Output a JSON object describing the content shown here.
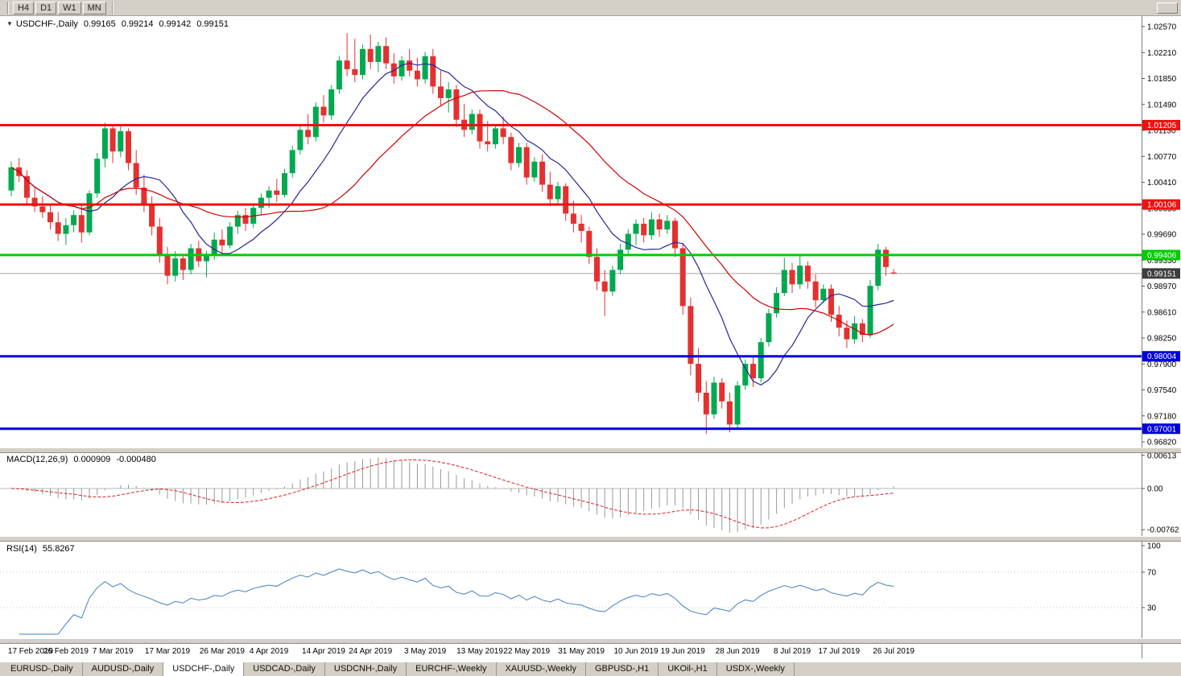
{
  "toolbar": {
    "timeframe_buttons": [
      "H4",
      "D1",
      "W1",
      "MN"
    ]
  },
  "main_chart": {
    "collapse_arrow": "▼",
    "symbol": "USDCHF-,Daily",
    "open": "0.99165",
    "high": "0.99214",
    "low": "0.99142",
    "close": "0.99151"
  },
  "macd_panel": {
    "label": "MACD(12,26,9)",
    "main_value": "0.000909",
    "signal_value": "-0.000480"
  },
  "rsi_panel": {
    "label": "RSI(14)",
    "value": "55.8267"
  },
  "tabs": {
    "items": [
      {
        "label": "EURUSD-,Daily",
        "active": false
      },
      {
        "label": "AUDUSD-,Daily",
        "active": false
      },
      {
        "label": "USDCHF-,Daily",
        "active": true
      },
      {
        "label": "USDCAD-,Daily",
        "active": false
      },
      {
        "label": "USDCNH-,Daily",
        "active": false
      },
      {
        "label": "EURCHF-,Weekly",
        "active": false
      },
      {
        "label": "XAUUSD-,Weekly",
        "active": false
      },
      {
        "label": "GBPUSD-,H1",
        "active": false
      },
      {
        "label": "UKOil-,H1",
        "active": false
      },
      {
        "label": "USDX-,Weekly",
        "active": false
      }
    ]
  },
  "chart_data": {
    "type": "candlestick",
    "symbol": "USDCHF",
    "timeframe": "Daily",
    "colors": {
      "up": "#00a94f",
      "down": "#e53030"
    },
    "y_axis": {
      "ticks": [
        "1.02570",
        "1.02210",
        "1.01850",
        "1.01490",
        "1.01130",
        "1.00770",
        "1.00410",
        "1.00050",
        "0.99690",
        "0.99330",
        "0.98970",
        "0.98610",
        "0.98250",
        "0.97900",
        "0.97540",
        "0.97180",
        "0.96820"
      ],
      "top_value": 1.0257,
      "bottom_value": 0.9682
    },
    "x_tick_labels": [
      {
        "i": 0,
        "label": "17 Feb 2019"
      },
      {
        "i": 7,
        "label": "26 Feb 2019"
      },
      {
        "i": 13,
        "label": "7 Mar 2019"
      },
      {
        "i": 20,
        "label": "17 Mar 2019"
      },
      {
        "i": 27,
        "label": "26 Mar 2019"
      },
      {
        "i": 33,
        "label": "4 Apr 2019"
      },
      {
        "i": 40,
        "label": "14 Apr 2019"
      },
      {
        "i": 46,
        "label": "24 Apr 2019"
      },
      {
        "i": 53,
        "label": "3 May 2019"
      },
      {
        "i": 60,
        "label": "13 May 2019"
      },
      {
        "i": 66,
        "label": "22 May 2019"
      },
      {
        "i": 73,
        "label": "31 May 2019"
      },
      {
        "i": 80,
        "label": "10 Jun 2019"
      },
      {
        "i": 86,
        "label": "19 Jun 2019"
      },
      {
        "i": 93,
        "label": "28 Jun 2019"
      },
      {
        "i": 100,
        "label": "8 Jul 2019"
      },
      {
        "i": 106,
        "label": "17 Jul 2019"
      },
      {
        "i": 113,
        "label": "26 Jul 2019"
      }
    ],
    "h_lines": [
      {
        "name": "resistance-1",
        "value": 1.01205,
        "label": "1.01205",
        "color": "#ee1111"
      },
      {
        "name": "resistance-2",
        "value": 1.00106,
        "label": "1.00106",
        "color": "#ee1111"
      },
      {
        "name": "support-green",
        "value": 0.99406,
        "label": "0.99406",
        "color": "#00cc00"
      },
      {
        "name": "support-blue-1",
        "value": 0.98004,
        "label": "0.98004",
        "color": "#0000dd"
      },
      {
        "name": "support-blue-2",
        "value": 0.97001,
        "label": "0.97001",
        "color": "#0000dd"
      }
    ],
    "current_price_line": {
      "value": 0.99151,
      "label": "0.99151",
      "color": "#3d3d3d"
    },
    "moving_averages": [
      {
        "type": "sma",
        "period": 10,
        "color": "#26269a"
      },
      {
        "type": "sma",
        "period": 25,
        "color": "#cc0000"
      }
    ],
    "macd": {
      "fast": 12,
      "slow": 26,
      "signal_period": 9,
      "histogram_color": "#999999",
      "signal_color": "#dd2222",
      "axis_labels": [
        "0.00613",
        "0.00",
        "-0.00762"
      ]
    },
    "rsi": {
      "period": 14,
      "color": "#4180c0",
      "levels": [
        70,
        30
      ],
      "axis_labels": [
        "100",
        "70",
        "30"
      ]
    },
    "candles": [
      [
        1.003,
        1.007,
        1.0022,
        1.0062
      ],
      [
        1.0062,
        1.0075,
        1.0042,
        1.005
      ],
      [
        1.005,
        1.0058,
        1.0012,
        1.002
      ],
      [
        1.002,
        1.0035,
        1.0,
        1.0008
      ],
      [
        1.0008,
        1.0022,
        0.9992,
        1.0
      ],
      [
        1.0,
        1.0012,
        0.9976,
        0.9986
      ],
      [
        0.9986,
        1.0,
        0.996,
        0.997
      ],
      [
        0.997,
        0.9992,
        0.9955,
        0.9982
      ],
      [
        0.9982,
        1.0002,
        0.9972,
        0.9996
      ],
      [
        0.9996,
        1.001,
        0.9958,
        0.9972
      ],
      [
        0.9972,
        1.003,
        0.9968,
        1.0026
      ],
      [
        1.0026,
        1.0082,
        1.002,
        1.0074
      ],
      [
        1.0074,
        1.0124,
        1.0062,
        1.0116
      ],
      [
        1.0116,
        1.0122,
        1.0068,
        1.0084
      ],
      [
        1.0084,
        1.012,
        1.0076,
        1.0112
      ],
      [
        1.0112,
        1.0116,
        1.0058,
        1.0068
      ],
      [
        1.0068,
        1.0086,
        1.0024,
        1.0034
      ],
      [
        1.0034,
        1.0052,
        1.0,
        1.001
      ],
      [
        1.001,
        1.0022,
        0.9968,
        0.998
      ],
      [
        0.998,
        0.9992,
        0.993,
        0.9942
      ],
      [
        0.9942,
        0.9952,
        0.99,
        0.9912
      ],
      [
        0.9912,
        0.9946,
        0.9904,
        0.9936
      ],
      [
        0.9936,
        0.9942,
        0.9906,
        0.992
      ],
      [
        0.992,
        0.9956,
        0.9914,
        0.995
      ],
      [
        0.995,
        0.996,
        0.9924,
        0.9932
      ],
      [
        0.9932,
        0.9946,
        0.991,
        0.994
      ],
      [
        0.994,
        0.9972,
        0.9934,
        0.9962
      ],
      [
        0.9962,
        0.9976,
        0.9944,
        0.9954
      ],
      [
        0.9954,
        0.9986,
        0.995,
        0.998
      ],
      [
        0.998,
        1.0002,
        0.997,
        0.9996
      ],
      [
        0.9996,
        1.0006,
        0.9974,
        0.9984
      ],
      [
        0.9984,
        1.0012,
        0.9978,
        1.0006
      ],
      [
        1.0006,
        1.0026,
        0.9996,
        1.002
      ],
      [
        1.002,
        1.0036,
        1.0006,
        1.003
      ],
      [
        1.003,
        1.0046,
        1.0014,
        1.0024
      ],
      [
        1.0024,
        1.006,
        1.002,
        1.0054
      ],
      [
        1.0054,
        1.0092,
        1.0048,
        1.0086
      ],
      [
        1.0086,
        1.0122,
        1.008,
        1.0114
      ],
      [
        1.0114,
        1.0136,
        1.0094,
        1.0104
      ],
      [
        1.0104,
        1.0152,
        1.0098,
        1.0146
      ],
      [
        1.0146,
        1.0162,
        1.0124,
        1.0134
      ],
      [
        1.0134,
        1.0176,
        1.0128,
        1.017
      ],
      [
        1.017,
        1.0216,
        1.0164,
        1.021
      ],
      [
        1.021,
        1.0248,
        1.0188,
        1.0198
      ],
      [
        1.0198,
        1.024,
        1.018,
        1.019
      ],
      [
        1.019,
        1.0232,
        1.0184,
        1.0226
      ],
      [
        1.0226,
        1.0246,
        1.0198,
        1.0208
      ],
      [
        1.0208,
        1.0236,
        1.0194,
        1.023
      ],
      [
        1.023,
        1.0242,
        1.0198,
        1.0206
      ],
      [
        1.0206,
        1.022,
        1.0178,
        1.0188
      ],
      [
        1.0188,
        1.0216,
        1.0182,
        1.021
      ],
      [
        1.021,
        1.0226,
        1.0188,
        1.0196
      ],
      [
        1.0196,
        1.0214,
        1.0174,
        1.0184
      ],
      [
        1.0184,
        1.0222,
        1.0178,
        1.0216
      ],
      [
        1.0216,
        1.0226,
        1.0164,
        1.0174
      ],
      [
        1.0174,
        1.0196,
        1.0148,
        1.0158
      ],
      [
        1.0158,
        1.018,
        1.0138,
        1.017
      ],
      [
        1.017,
        1.0176,
        1.0118,
        1.0128
      ],
      [
        1.0128,
        1.015,
        1.0104,
        1.0114
      ],
      [
        1.0114,
        1.0142,
        1.0108,
        1.0136
      ],
      [
        1.0136,
        1.0142,
        1.0088,
        1.0098
      ],
      [
        1.0098,
        1.0126,
        1.0084,
        1.0094
      ],
      [
        1.0094,
        1.0122,
        1.0088,
        1.0116
      ],
      [
        1.0116,
        1.0132,
        1.0094,
        1.0104
      ],
      [
        1.0104,
        1.011,
        1.0058,
        1.0068
      ],
      [
        1.0068,
        1.0096,
        1.0062,
        1.009
      ],
      [
        1.009,
        1.0096,
        1.0038,
        1.0048
      ],
      [
        1.0048,
        1.0076,
        1.0042,
        1.007
      ],
      [
        1.007,
        1.008,
        1.0028,
        1.0038
      ],
      [
        1.0038,
        1.0056,
        1.0008,
        1.0018
      ],
      [
        1.0018,
        1.0042,
        1.0012,
        1.0036
      ],
      [
        1.0036,
        1.004,
        0.9988,
        0.9998
      ],
      [
        0.9998,
        1.0016,
        0.9972,
        0.9984
      ],
      [
        0.9984,
        0.9996,
        0.9958,
        0.9974
      ],
      [
        0.9974,
        0.998,
        0.9928,
        0.9938
      ],
      [
        0.9938,
        0.995,
        0.9892,
        0.9904
      ],
      [
        0.9904,
        0.992,
        0.9856,
        0.989
      ],
      [
        0.989,
        0.9926,
        0.9884,
        0.992
      ],
      [
        0.992,
        0.9956,
        0.9914,
        0.9948
      ],
      [
        0.9948,
        0.9976,
        0.994,
        0.997
      ],
      [
        0.997,
        0.999,
        0.9954,
        0.9984
      ],
      [
        0.9984,
        0.9992,
        0.9958,
        0.9968
      ],
      [
        0.9968,
        1.0,
        0.9962,
        0.999
      ],
      [
        0.999,
        0.9998,
        0.9966,
        0.9976
      ],
      [
        0.9976,
        0.9996,
        0.997,
        0.9988
      ],
      [
        0.9988,
        0.9992,
        0.9938,
        0.995
      ],
      [
        0.995,
        0.9956,
        0.9858,
        0.987
      ],
      [
        0.987,
        0.9882,
        0.9774,
        0.979
      ],
      [
        0.979,
        0.9812,
        0.9738,
        0.975
      ],
      [
        0.975,
        0.9766,
        0.9693,
        0.972
      ],
      [
        0.972,
        0.9772,
        0.9714,
        0.9764
      ],
      [
        0.9764,
        0.977,
        0.9728,
        0.9738
      ],
      [
        0.9738,
        0.975,
        0.9695,
        0.9706
      ],
      [
        0.9706,
        0.9766,
        0.97,
        0.976
      ],
      [
        0.976,
        0.9796,
        0.9754,
        0.979
      ],
      [
        0.979,
        0.98,
        0.9758,
        0.977
      ],
      [
        0.977,
        0.9826,
        0.9764,
        0.982
      ],
      [
        0.982,
        0.9866,
        0.9814,
        0.986
      ],
      [
        0.986,
        0.9896,
        0.9854,
        0.9888
      ],
      [
        0.9888,
        0.9937,
        0.9884,
        0.992
      ],
      [
        0.992,
        0.993,
        0.9888,
        0.99
      ],
      [
        0.99,
        0.994,
        0.9894,
        0.9926
      ],
      [
        0.9926,
        0.9932,
        0.9894,
        0.9904
      ],
      [
        0.9904,
        0.9914,
        0.9868,
        0.9878
      ],
      [
        0.9878,
        0.99,
        0.9874,
        0.9894
      ],
      [
        0.9894,
        0.99,
        0.9848,
        0.9858
      ],
      [
        0.9858,
        0.987,
        0.9828,
        0.984
      ],
      [
        0.984,
        0.985,
        0.9812,
        0.9824
      ],
      [
        0.9824,
        0.9856,
        0.9818,
        0.9846
      ],
      [
        0.9846,
        0.9852,
        0.982,
        0.983
      ],
      [
        0.983,
        0.9906,
        0.9826,
        0.9898
      ],
      [
        0.9898,
        0.9956,
        0.9892,
        0.9948
      ],
      [
        0.9948,
        0.9952,
        0.9912,
        0.9924
      ],
      [
        0.99165,
        0.99214,
        0.99142,
        0.99151
      ]
    ]
  }
}
